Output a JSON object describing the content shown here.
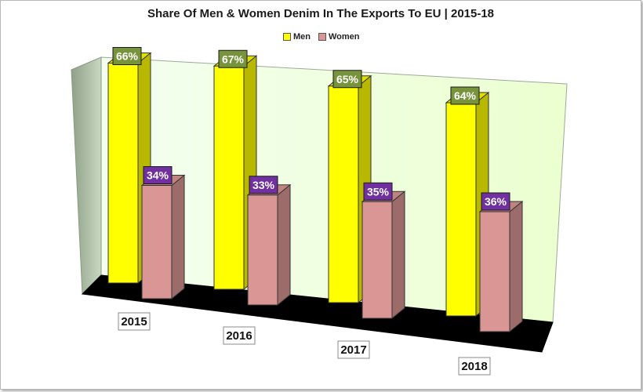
{
  "chart_data": {
    "type": "bar",
    "title": "Share Of Men & Women Denim In The Exports To EU | 2015-18",
    "categories": [
      "2015",
      "2016",
      "2017",
      "2018"
    ],
    "series": [
      {
        "name": "Men",
        "values": [
          66,
          67,
          65,
          64
        ],
        "labels": [
          "66%",
          "67%",
          "65%",
          "64%"
        ]
      },
      {
        "name": "Women",
        "values": [
          34,
          33,
          35,
          36
        ],
        "labels": [
          "34%",
          "33%",
          "35%",
          "36%"
        ]
      }
    ],
    "unit": "%",
    "legend_position": "top",
    "three_d": true
  },
  "colors": {
    "men": "#ffff00",
    "women": "#d99694",
    "men_label_bg": "#77933c",
    "women_label_bg": "#7030a0",
    "back_wall": "#ebffd0",
    "side_wall": "#8fa088",
    "floor": "#000000"
  }
}
